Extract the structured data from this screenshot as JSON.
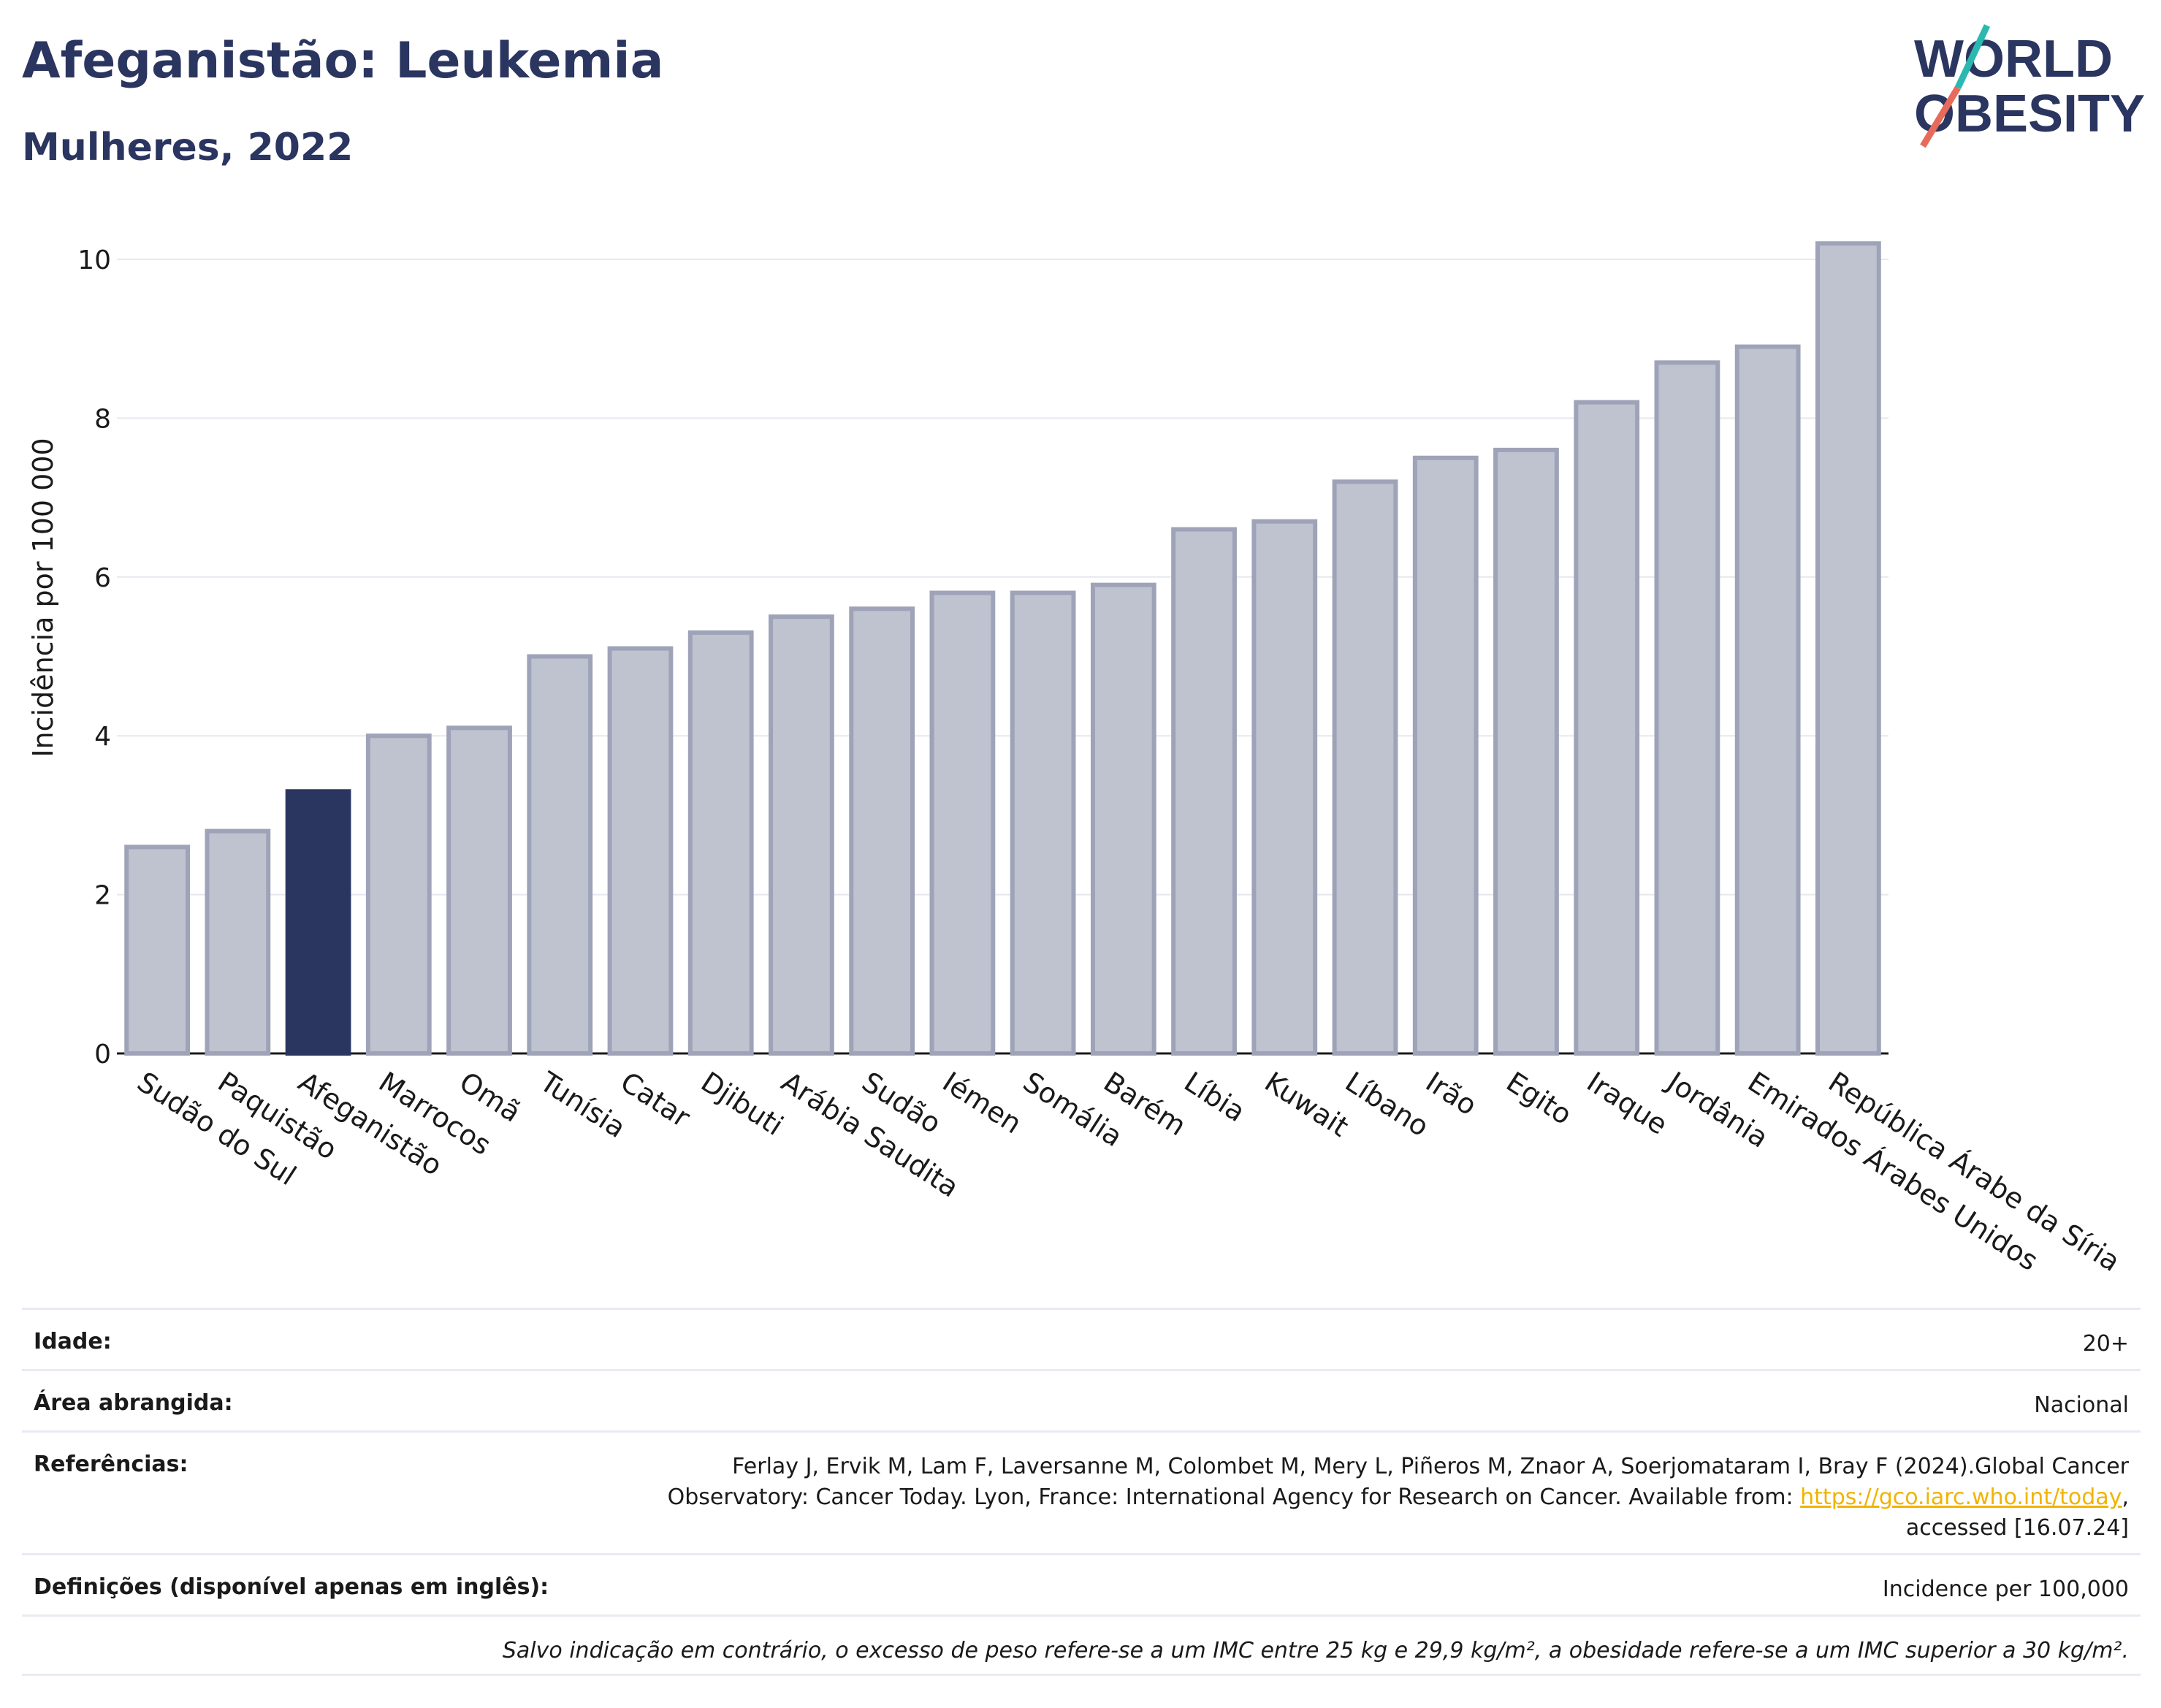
{
  "header": {
    "title": "Afeganistão: Leukemia",
    "subtitle": "Mulheres, 2022",
    "logo_line1": "WORLD",
    "logo_line2": "OBESITY"
  },
  "chart_data": {
    "type": "bar",
    "ylabel": "Incidência por 100 000",
    "ylim": [
      0,
      10.5
    ],
    "yticks": [
      0,
      2,
      4,
      6,
      8,
      10
    ],
    "grid": true,
    "highlight": "Afeganistão",
    "colors": {
      "bar": "#bfc2cf",
      "bar_border": "#9ea3b8",
      "highlight": "#2a3560"
    },
    "categories": [
      "Sudão do Sul",
      "Paquistão",
      "Afeganistão",
      "Marrocos",
      "Omã",
      "Tunísia",
      "Catar",
      "Djibuti",
      "Arábia Saudita",
      "Sudão",
      "Iémen",
      "Somália",
      "Barém",
      "Líbia",
      "Kuwait",
      "Líbano",
      "Irão",
      "Egito",
      "Iraque",
      "Jordânia",
      "Emirados Árabes Unidos",
      "República Árabe da Síria"
    ],
    "values": [
      2.6,
      2.8,
      3.3,
      4.0,
      4.1,
      5.0,
      5.1,
      5.3,
      5.5,
      5.6,
      5.8,
      5.8,
      5.9,
      6.6,
      6.7,
      7.2,
      7.5,
      7.6,
      8.2,
      8.7,
      8.9,
      10.2
    ]
  },
  "info": {
    "age_label": "Idade:",
    "age_value": "20+",
    "area_label": "Área abrangida:",
    "area_value": "Nacional",
    "refs_label": "Referências:",
    "refs_line1": "Ferlay J, Ervik M, Lam F, Laversanne M, Colombet M, Mery L, Piñeros M, Znaor A, Soerjomataram I, Bray F (2024).Global Cancer",
    "refs_line2": "Observatory: Cancer Today. Lyon, France: International Agency for Research on Cancer. Available from:",
    "refs_link": "https://gco.iarc.who.int/today",
    "refs_line2_end": ",",
    "refs_line3": "accessed [16.07.24]",
    "defs_label": "Definições (disponível apenas em inglês):",
    "defs_value": "Incidence per 100,000",
    "footnote": "Salvo indicação em contrário, o excesso de peso refere-se a um IMC entre 25 kg e 29,9 kg/m², a obesidade refere-se a um IMC superior a 30 kg/m²."
  }
}
